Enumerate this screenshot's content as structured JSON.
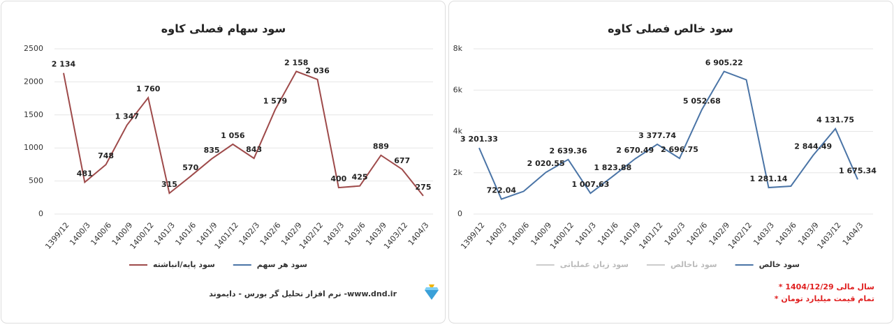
{
  "chart_data": [
    {
      "type": "line",
      "title": "سود سهام فصلی کاوه",
      "categories": [
        "1399/12",
        "1400/3",
        "1400/6",
        "1400/9",
        "1400/12",
        "1401/3",
        "1401/6",
        "1401/9",
        "1401/12",
        "1402/3",
        "1402/6",
        "1402/9",
        "1402/12",
        "1403/3",
        "1403/6",
        "1403/9",
        "1403/12",
        "1404/3"
      ],
      "series": [
        {
          "name": "سود هر سهم",
          "color": "#4a74a6",
          "values": [
            null,
            null,
            null,
            null,
            null,
            null,
            null,
            null,
            null,
            null,
            null,
            null,
            null,
            null,
            null,
            null,
            null,
            null
          ]
        },
        {
          "name": "سود پایه/انباشته",
          "color": "#9e4a4a",
          "values": [
            2134,
            481,
            748,
            1347,
            1760,
            315,
            570,
            835,
            1056,
            843,
            1579,
            2158,
            2036,
            400,
            425,
            889,
            677,
            275
          ],
          "value_labels": [
            "2 134",
            "481",
            "748",
            "1 347",
            "1 760",
            "315",
            "570",
            "835",
            "1 056",
            "843",
            "1 579",
            "2 158",
            "2 036",
            "400",
            "425",
            "889",
            "677",
            "275"
          ]
        }
      ],
      "ylim": [
        0,
        2500
      ],
      "yticks": [
        0,
        500,
        1000,
        1500,
        2000,
        2500
      ],
      "grid": true,
      "footer": "نرم افزار تحلیل گر بورس - دایموند -www.dnd.ir"
    },
    {
      "type": "line",
      "title": "سود خالص فصلی کاوه",
      "categories": [
        "1399/12",
        "1400/3",
        "1400/6",
        "1400/9",
        "1400/12",
        "1401/3",
        "1401/6",
        "1401/9",
        "1401/12",
        "1402/3",
        "1402/6",
        "1402/9",
        "1402/12",
        "1403/3",
        "1403/6",
        "1403/9",
        "1403/12",
        "1404/3"
      ],
      "series": [
        {
          "name": "سود خالص",
          "color": "#4a74a6",
          "values": [
            3201.33,
            722.04,
            1100,
            2020.55,
            2639.36,
            1007.63,
            1823.88,
            2670.49,
            3377.74,
            2696.75,
            5052.68,
            6905.22,
            6500,
            1281.14,
            1350,
            2844.49,
            4131.75,
            1675.34
          ],
          "value_labels": [
            "3 201.33",
            "722.04",
            null,
            "2 020.55",
            "2 639.36",
            "1 007.63",
            "1 823.88",
            "2 670.49",
            "3 377.74",
            "2 696.75",
            "5 052.68",
            "6 905.22",
            null,
            "1 281.14",
            null,
            "2 844.49",
            "4 131.75",
            "1 675.34"
          ]
        },
        {
          "name": "سود ناخالص",
          "color": "#cccccc",
          "visible": false,
          "values": [
            null,
            null,
            null,
            null,
            null,
            null,
            null,
            null,
            null,
            null,
            null,
            null,
            null,
            null,
            null,
            null,
            null,
            null
          ]
        },
        {
          "name": "سود زیان عملیاتی",
          "color": "#cccccc",
          "visible": false,
          "values": [
            null,
            null,
            null,
            null,
            null,
            null,
            null,
            null,
            null,
            null,
            null,
            null,
            null,
            null,
            null,
            null,
            null,
            null
          ]
        }
      ],
      "ylim": [
        0,
        8000
      ],
      "yticks": [
        0,
        {
          "value": 2000,
          "label": "2k"
        },
        {
          "value": 4000,
          "label": "4k"
        },
        {
          "value": 6000,
          "label": "6k"
        },
        {
          "value": 8000,
          "label": "8k"
        }
      ],
      "grid": true,
      "notes": [
        "* سال مالی 1404/12/29",
        "* تمام قیمت میلیارد تومان"
      ]
    }
  ]
}
